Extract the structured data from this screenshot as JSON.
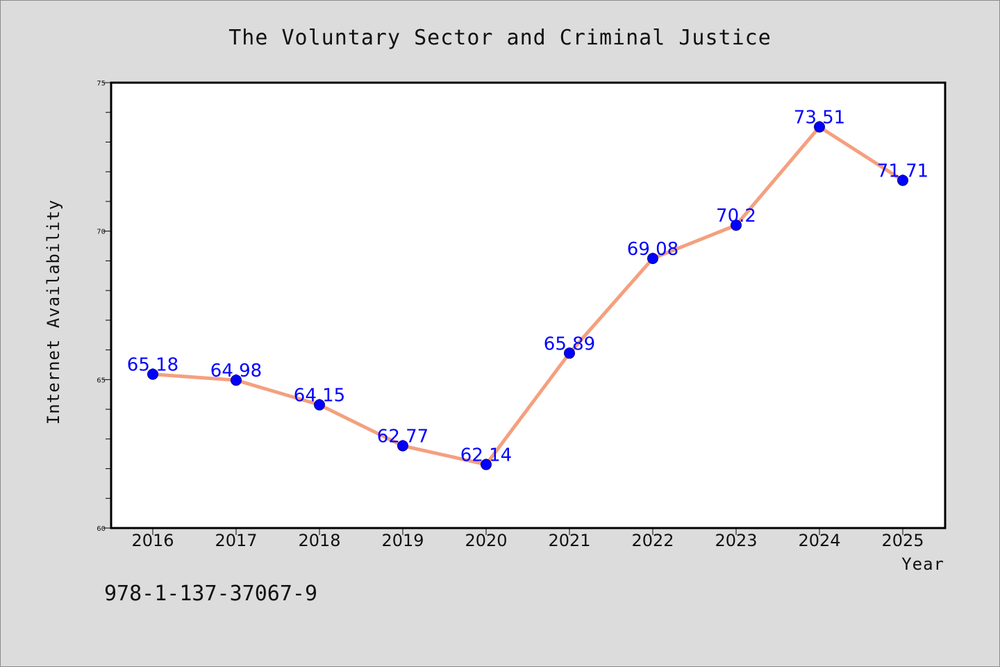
{
  "chart_data": {
    "type": "line",
    "title": "The Voluntary Sector and Criminal Justice",
    "xlabel": "Year",
    "ylabel": "Internet Availability",
    "categories": [
      "2016",
      "2017",
      "2018",
      "2019",
      "2020",
      "2021",
      "2022",
      "2023",
      "2024",
      "2025"
    ],
    "series": [
      {
        "values": [
          65.18,
          64.98,
          64.15,
          62.77,
          62.14,
          65.89,
          69.08,
          70.2,
          73.51,
          71.71
        ],
        "labels": [
          "65.18",
          "64.98",
          "64.15",
          "62.77",
          "62.14",
          "65.89",
          "69.08",
          "70.2",
          "73.51",
          "71.71"
        ]
      }
    ],
    "ylim": [
      60,
      75
    ],
    "yticks": [
      "60",
      "65",
      "70",
      "75"
    ],
    "grid": false,
    "legend": "none",
    "colors": {
      "line": "#f4a07f",
      "marker": "#0000ff",
      "label": "#0000ff",
      "background": "#dcdcdc",
      "plot_background": "#ffffff"
    }
  },
  "footer": {
    "isbn": "978-1-137-37067-9"
  }
}
